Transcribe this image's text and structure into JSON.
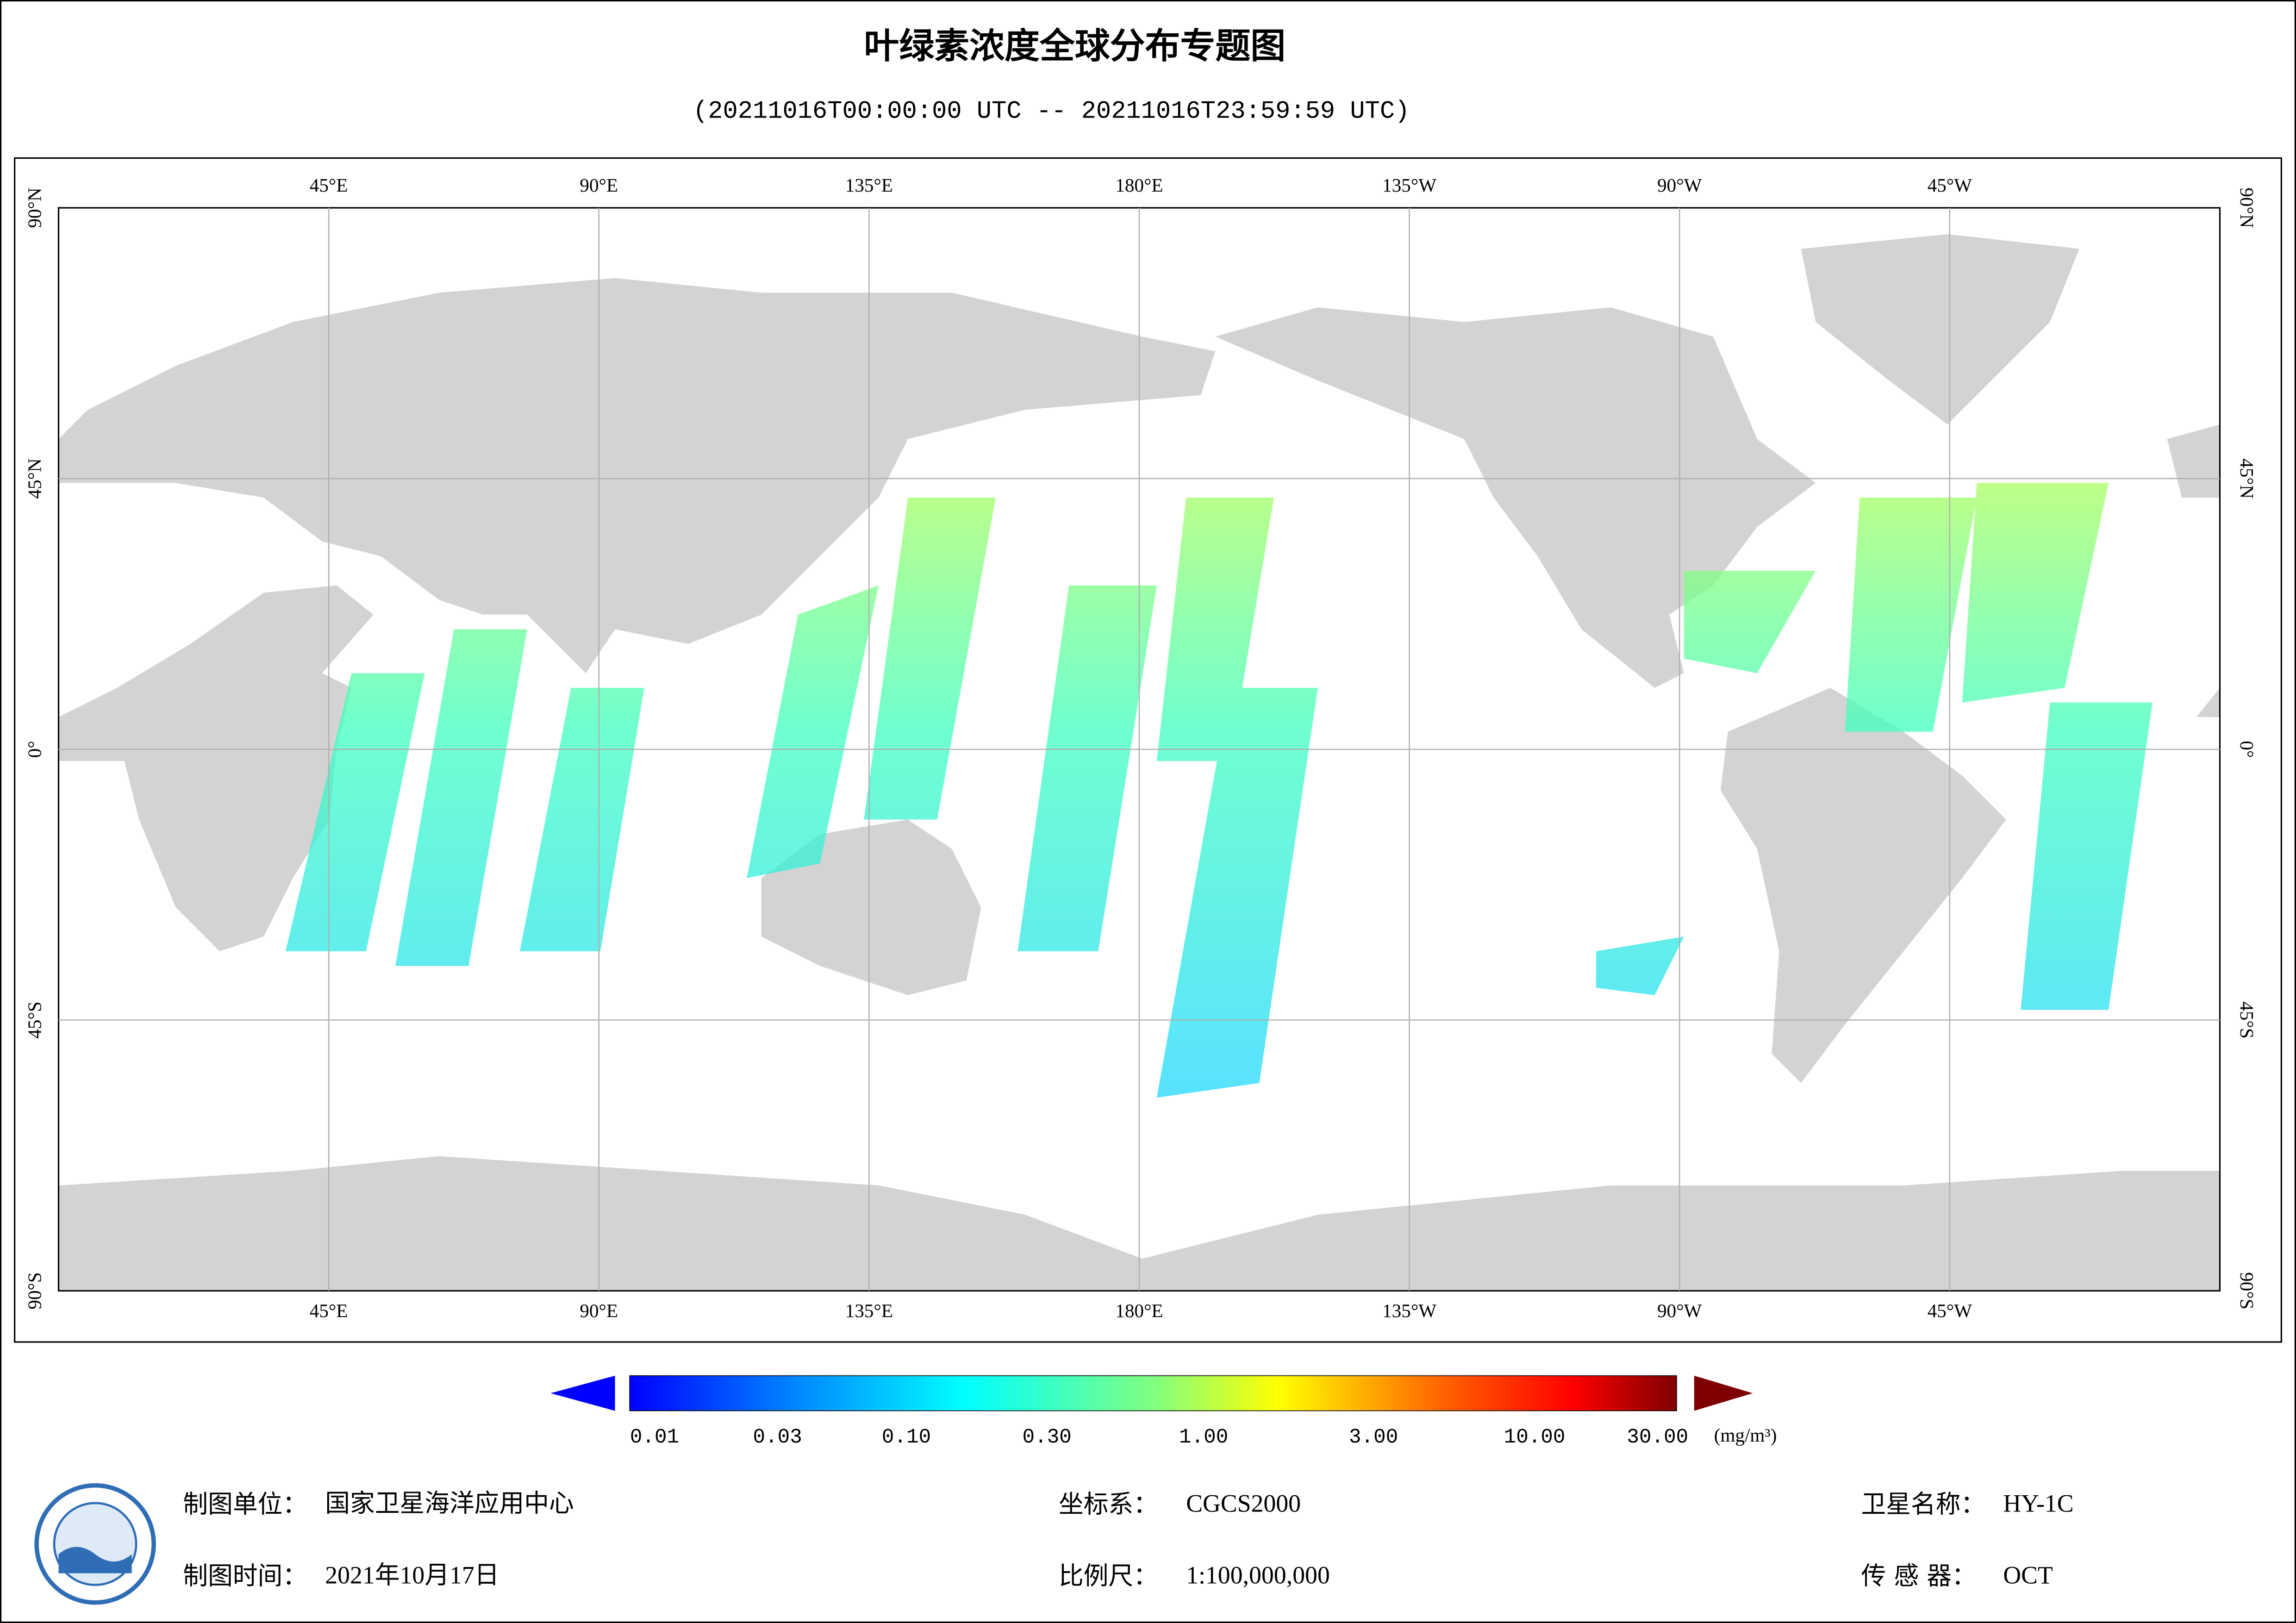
{
  "title": "叶绿素浓度全球分布专题图",
  "subtitle": "(20211016T00:00:00 UTC -- 20211016T23:59:59 UTC)",
  "map": {
    "lon_labels": [
      "45°E",
      "90°E",
      "135°E",
      "180°E",
      "135°W",
      "90°W",
      "45°W"
    ],
    "lat_labels": [
      "90°N",
      "45°N",
      "0°",
      "45°S",
      "90°S"
    ]
  },
  "colorbar": {
    "labels": [
      "0.01",
      "0.03",
      "0.10",
      "0.30",
      "1.00",
      "3.00",
      "10.00",
      "30.00"
    ],
    "unit": "(mg/m³)"
  },
  "footer": {
    "unit_label": "制图单位：",
    "unit_value": "国家卫星海洋应用中心",
    "time_label": "制图时间：",
    "time_value": "2021年10月17日",
    "crs_label": "坐标系：",
    "crs_value": "CGCS2000",
    "scale_label": "比例尺：",
    "scale_value": "1:100,000,000",
    "satellite_label": "卫星名称：",
    "satellite_value": "HY-1C",
    "sensor_label": "传 感 器：",
    "sensor_value": "OCT"
  }
}
